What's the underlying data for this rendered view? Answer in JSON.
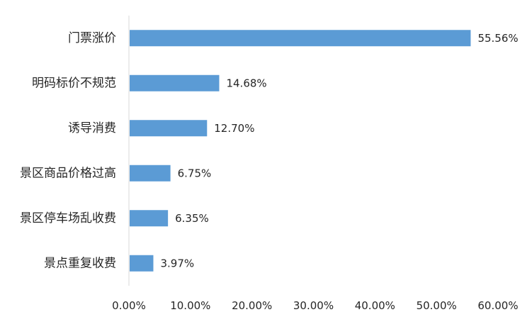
{
  "chart_data": {
    "type": "bar",
    "orientation": "horizontal",
    "categories": [
      "门票涨价",
      "明码标价不规范",
      "诱导消费",
      "景区商品价格过高",
      "景区停车场乱收费",
      "景点重复收费"
    ],
    "values": [
      55.56,
      14.68,
      12.7,
      6.75,
      6.35,
      3.97
    ],
    "value_labels": [
      "55.56%",
      "14.68%",
      "12.70%",
      "6.75%",
      "6.35%",
      "3.97%"
    ],
    "xlim": [
      0,
      60
    ],
    "x_ticks": [
      0,
      10,
      20,
      30,
      40,
      50,
      60
    ],
    "x_tick_labels": [
      "0.00%",
      "10.00%",
      "20.00%",
      "30.00%",
      "40.00%",
      "50.00%",
      "60.00%"
    ],
    "grid": false,
    "bar_color": "#5B9BD5",
    "title": "",
    "xlabel": "",
    "ylabel": ""
  }
}
